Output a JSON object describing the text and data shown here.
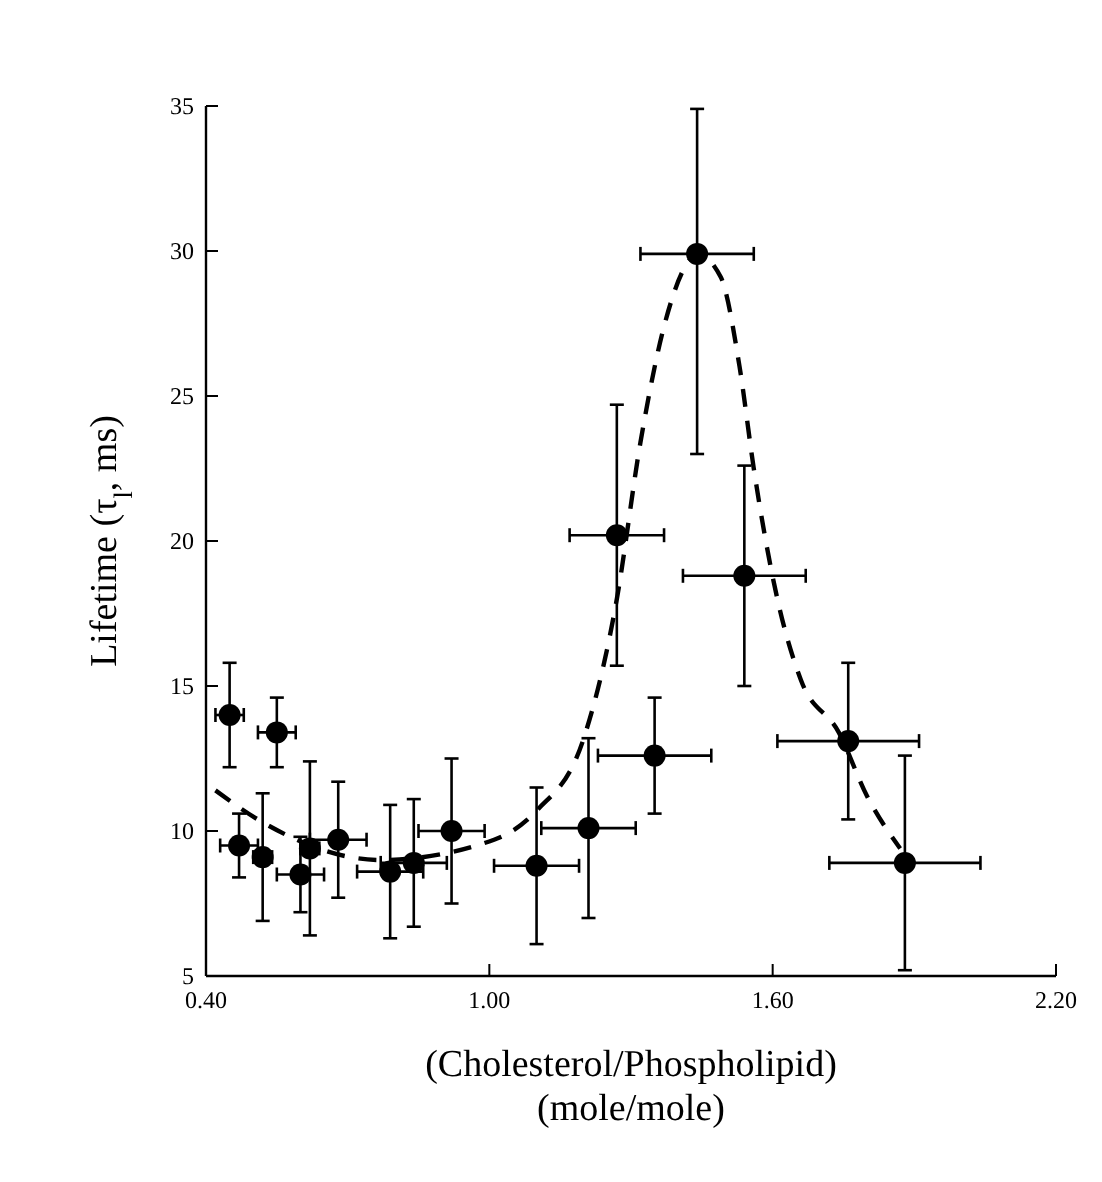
{
  "chart_data": {
    "type": "scatter",
    "xlabel": "(Cholesterol/Phospholipid)\n(mole/mole)",
    "ylabel": "Lifetime (τ$_{l}$, ms)",
    "xlim": [
      0.4,
      2.2
    ],
    "xticks": [
      {
        "value": 0.4,
        "label": "0.40"
      },
      {
        "value": 1.0,
        "label": "1.00"
      },
      {
        "value": 1.6,
        "label": "1.60"
      },
      {
        "value": 2.2,
        "label": "2.20"
      }
    ],
    "ylim": [
      5,
      35
    ],
    "yticks": [
      5,
      10,
      15,
      20,
      25,
      30,
      35
    ],
    "grid": false,
    "series": [
      {
        "color": "#000000",
        "marker": "circle",
        "x": [
          0.45,
          0.55,
          0.47,
          0.52,
          0.6,
          0.62,
          0.68,
          0.79,
          0.84,
          0.92,
          1.1,
          1.21,
          1.27,
          1.35,
          1.44,
          1.54,
          1.76,
          1.88
        ],
        "values": [
          14.0,
          13.4,
          9.5,
          9.1,
          8.5,
          9.4,
          9.7,
          8.6,
          8.9,
          10.0,
          8.8,
          10.1,
          20.2,
          12.6,
          29.9,
          18.8,
          13.1,
          8.9
        ],
        "errors": [
          1.8,
          1.2,
          1.1,
          2.2,
          1.3,
          3.0,
          2.0,
          2.3,
          2.2,
          2.5,
          2.7,
          3.1,
          4.5,
          2.0,
          [
            23.0,
            34.9
          ],
          3.8,
          2.7,
          3.7
        ],
        "xerrors": [
          0.03,
          0.04,
          0.04,
          0.02,
          0.05,
          0.02,
          0.06,
          0.07,
          0.07,
          0.07,
          0.09,
          0.1,
          0.1,
          0.12,
          0.12,
          0.13,
          0.15,
          0.16
        ]
      },
      {
        "type": "line",
        "color": "#000000",
        "marker": "none",
        "line_style": "dashed",
        "x": [
          0.42,
          0.52,
          0.77,
          1.01,
          1.1,
          1.2,
          1.27,
          1.32,
          1.37,
          1.42,
          1.44,
          1.49,
          1.53,
          1.56,
          1.61,
          1.66,
          1.74,
          1.8,
          1.87
        ],
        "values": [
          11.4,
          10.3,
          9.0,
          9.7,
          10.7,
          13.2,
          18.0,
          23.4,
          27.4,
          29.6,
          29.9,
          29.1,
          26.0,
          22.5,
          18.0,
          15.2,
          13.4,
          11.2,
          9.4
        ]
      }
    ]
  }
}
